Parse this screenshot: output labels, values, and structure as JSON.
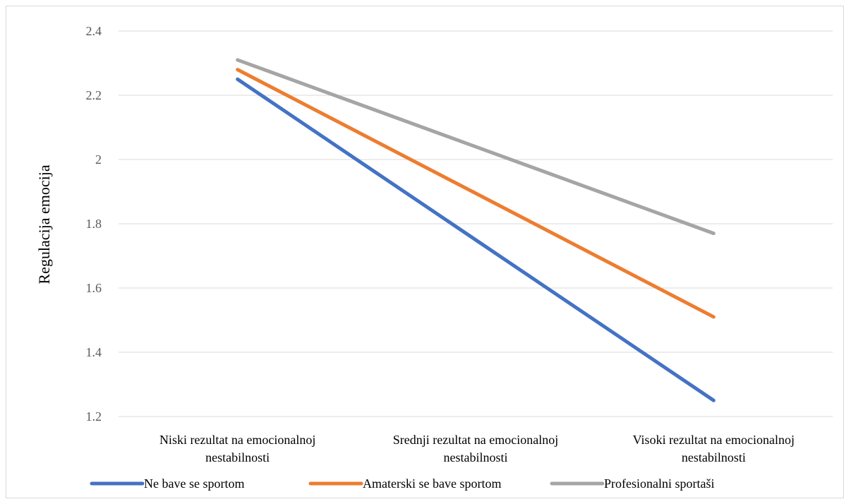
{
  "chart_data": {
    "type": "line",
    "title": "",
    "xlabel": "",
    "ylabel": "Regulacija emocija",
    "categories": [
      [
        "Niski rezultat na emocionalnoj",
        "nestabilnosti"
      ],
      [
        "Srednji rezultat na emocionalnoj",
        "nestabilnosti"
      ],
      [
        "Visoki rezultat na emocionalnoj",
        "nestabilnosti"
      ]
    ],
    "ylim": [
      1.2,
      2.4
    ],
    "yticks": [
      "1.2",
      "1.4",
      "1.6",
      "1.8",
      "2",
      "2.2",
      "2.4"
    ],
    "grid": true,
    "legend_position": "bottom",
    "series": [
      {
        "name": "Ne bave se sportom",
        "color": "#4472c4",
        "values": [
          2.25,
          1.75,
          1.25
        ]
      },
      {
        "name": "Amaterski se bave sportom",
        "color": "#ed7d31",
        "values": [
          2.28,
          1.895,
          1.51
        ]
      },
      {
        "name": "Profesionalni sportaši",
        "color": "#a5a5a5",
        "values": [
          2.31,
          2.04,
          1.77
        ]
      }
    ]
  }
}
